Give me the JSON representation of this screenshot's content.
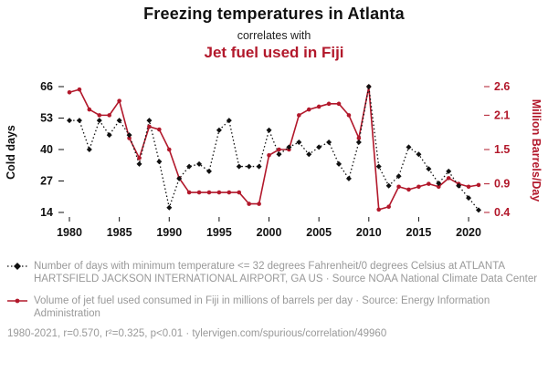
{
  "titles": {
    "primary": "Freezing temperatures in Atlanta",
    "connector": "correlates with",
    "secondary": "Jet fuel used in Fiji"
  },
  "colors": {
    "atlanta_black": "#111111",
    "fiji_red": "#b2182b",
    "footer_gray": "#999999"
  },
  "chart_data": {
    "type": "line",
    "title": "Freezing temperatures in Atlanta correlates with Jet fuel used in Fiji",
    "ylabel_left": "Cold days",
    "ylabel_right": "Million Barrels/Day",
    "grid": false,
    "legend_position": "none",
    "x_range": [
      1980,
      2021
    ],
    "left_range": [
      14,
      66
    ],
    "right_range": [
      0.4,
      2.6
    ],
    "x_ticks": [
      1980,
      1985,
      1990,
      1995,
      2000,
      2005,
      2010,
      2015,
      2020
    ],
    "left_ticks": [
      14,
      27,
      40,
      53,
      66
    ],
    "right_ticks": [
      0.4,
      0.9,
      1.5,
      2.1,
      2.6
    ],
    "x": [
      1980,
      1981,
      1982,
      1983,
      1984,
      1985,
      1986,
      1987,
      1988,
      1989,
      1990,
      1991,
      1992,
      1993,
      1994,
      1995,
      1996,
      1997,
      1998,
      1999,
      2000,
      2001,
      2002,
      2003,
      2004,
      2005,
      2006,
      2007,
      2008,
      2009,
      2010,
      2011,
      2012,
      2013,
      2014,
      2015,
      2016,
      2017,
      2018,
      2019,
      2020,
      2021
    ],
    "series": [
      {
        "name": "Freezing temperatures in Atlanta (Cold days)",
        "axis": "left",
        "style": "dashed-diamond",
        "values": [
          52,
          52,
          40,
          52,
          46,
          52,
          46,
          34,
          52,
          35,
          16,
          28,
          33,
          34,
          31,
          48,
          52,
          33,
          33,
          33,
          48,
          38,
          41,
          43,
          38,
          41,
          43,
          34,
          28,
          43,
          66,
          33,
          25,
          29,
          41,
          38,
          32,
          26,
          31,
          25,
          20,
          15
        ]
      },
      {
        "name": "Jet fuel used in Fiji (Million Barrels/Day)",
        "axis": "right",
        "style": "solid-circle",
        "values": [
          2.5,
          2.55,
          2.2,
          2.1,
          2.1,
          2.35,
          1.7,
          1.35,
          1.9,
          1.85,
          1.5,
          1.0,
          0.75,
          0.75,
          0.75,
          0.75,
          0.75,
          0.75,
          0.55,
          0.55,
          1.4,
          1.5,
          1.5,
          2.1,
          2.2,
          2.25,
          2.3,
          2.3,
          2.1,
          1.7,
          2.6,
          0.45,
          0.5,
          0.85,
          0.8,
          0.85,
          0.9,
          0.85,
          1.0,
          0.9,
          0.85,
          0.88
        ]
      }
    ]
  },
  "footer": {
    "series1_label": "Number of days with minimum temperature <= 32 degrees Fahrenheit/0 degrees Celsius at ATLANTA HARTSFIELD JACKSON INTERNATIONAL AIRPORT, GA US · Source NOAA National Climate Data Center",
    "series2_label": "Volume of jet fuel used consumed in Fiji in millions of barrels per day · Source: Energy Information Administration",
    "stats_line": "1980-2021, r=0.570, r²=0.325, p<0.01 · tylervigen.com/spurious/correlation/49960"
  }
}
